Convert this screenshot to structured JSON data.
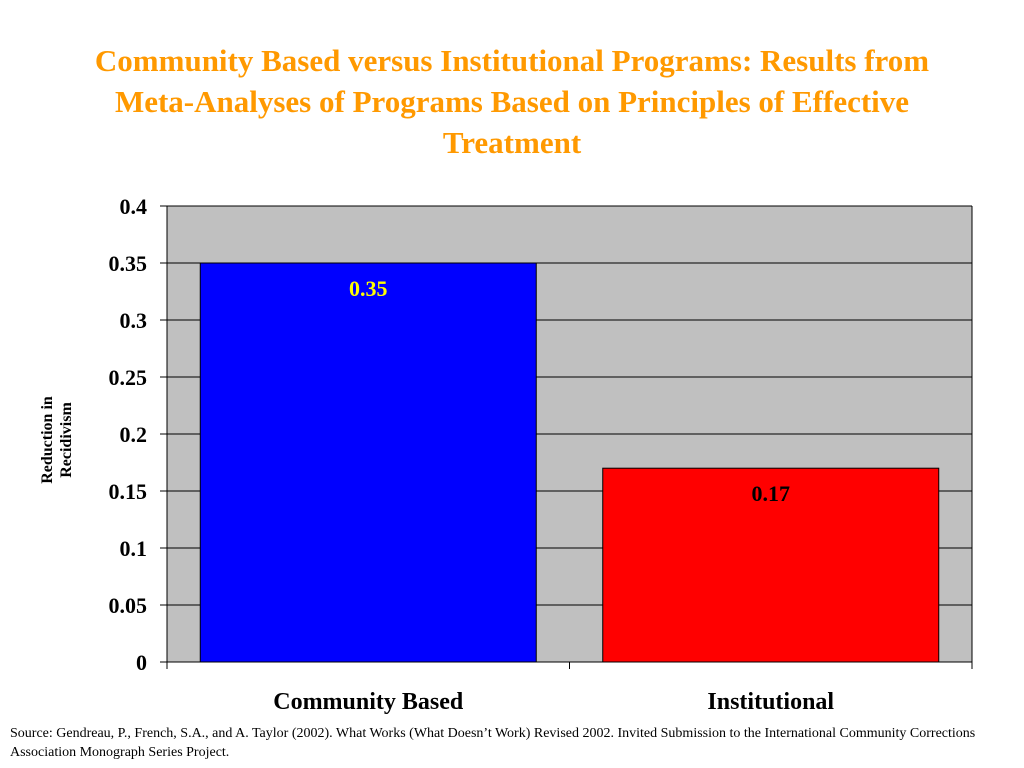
{
  "title": "Community Based versus Institutional Programs: Results from Meta-Analyses of Programs Based on Principles of Effective Treatment",
  "source": "Source:  Gendreau, P., French, S.A., and A. Taylor (2002).  What Works (What Doesn’t Work) Revised 2002.  Invited Submission to the International Community Corrections Association Monograph Series Project.",
  "colors": {
    "title": "#FF9900",
    "plot_background": "#C0C0C0",
    "gridline": "#000000",
    "bar_community": "#0000FF",
    "bar_institutional": "#FF0000",
    "label_on_community": "#FFFF00",
    "label_on_institutional": "#000000"
  },
  "chart_data": {
    "type": "bar",
    "title": "Community Based versus Institutional Programs: Results from Meta-Analyses of Programs Based on Principles of Effective Treatment",
    "xlabel": "",
    "ylabel": "Reduction in Recidivism",
    "ylabel_lines": [
      "Reduction in",
      "Recidivism"
    ],
    "categories": [
      "Community Based",
      "Institutional"
    ],
    "values": [
      0.35,
      0.17
    ],
    "data_labels": [
      "0.35",
      "0.17"
    ],
    "ylim": [
      0,
      0.4
    ],
    "yticks": [
      0,
      0.05,
      0.1,
      0.15,
      0.2,
      0.25,
      0.3,
      0.35,
      0.4
    ],
    "ytick_labels": [
      "0",
      "0.05",
      "0.1",
      "0.15",
      "0.2",
      "0.25",
      "0.3",
      "0.35",
      "0.4"
    ],
    "grid": true,
    "legend": "none"
  }
}
